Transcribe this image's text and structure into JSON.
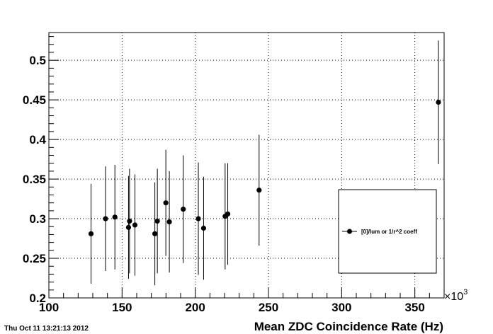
{
  "timestamp": "Thu Oct 11 13:21:13 2012",
  "chart_data": {
    "type": "scatter",
    "title": "",
    "xlabel": "Mean ZDC Coincidence Rate (Hz)",
    "ylabel": "",
    "x_multiplier": "×10",
    "x_multiplier_exponent": "3",
    "xlim": [
      100,
      370
    ],
    "ylim": [
      0.2,
      0.535
    ],
    "x_ticks": [
      100,
      150,
      200,
      250,
      300,
      350
    ],
    "x_tick_labels": [
      "100",
      "150",
      "200",
      "250",
      "300",
      "350"
    ],
    "y_ticks": [
      0.2,
      0.25,
      0.3,
      0.35,
      0.4,
      0.45,
      0.5
    ],
    "y_tick_labels": [
      "0.2",
      "0.25",
      "0.3",
      "0.35",
      "0.4",
      "0.45",
      "0.5"
    ],
    "grid": true,
    "legend_position": "bottom-right",
    "series": [
      {
        "name": "[0]/lum or 1/r^2 coeff",
        "color": "#000000",
        "points": [
          {
            "x": 128.8,
            "y": 0.281,
            "err": 0.063
          },
          {
            "x": 138.7,
            "y": 0.3,
            "err": 0.066
          },
          {
            "x": 145.1,
            "y": 0.302,
            "err": 0.066
          },
          {
            "x": 154.4,
            "y": 0.289,
            "err": 0.065
          },
          {
            "x": 155.1,
            "y": 0.297,
            "err": 0.066
          },
          {
            "x": 158.8,
            "y": 0.292,
            "err": 0.064
          },
          {
            "x": 172.4,
            "y": 0.281,
            "err": 0.065
          },
          {
            "x": 174.1,
            "y": 0.297,
            "err": 0.066
          },
          {
            "x": 179.9,
            "y": 0.32,
            "err": 0.067
          },
          {
            "x": 182.3,
            "y": 0.296,
            "err": 0.064
          },
          {
            "x": 191.8,
            "y": 0.312,
            "err": 0.068
          },
          {
            "x": 202.1,
            "y": 0.3,
            "err": 0.071
          },
          {
            "x": 205.7,
            "y": 0.288,
            "err": 0.065
          },
          {
            "x": 220.4,
            "y": 0.303,
            "err": 0.067
          },
          {
            "x": 222.2,
            "y": 0.306,
            "err": 0.064
          },
          {
            "x": 243.6,
            "y": 0.336,
            "err": 0.07
          },
          {
            "x": 366.1,
            "y": 0.447,
            "err": 0.078
          }
        ]
      }
    ]
  }
}
